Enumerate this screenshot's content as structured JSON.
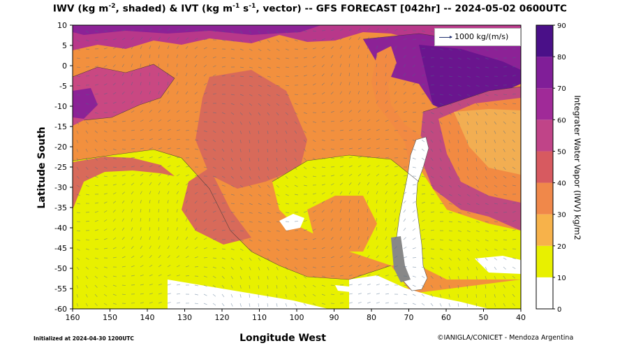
{
  "title": {
    "part1": "IWV (kg m",
    "sup1": "-2",
    "part2": ", shaded) & IVT (kg m",
    "sup2": "-1",
    "part3": " s",
    "sup3": "-1",
    "part4": ", vector) -- GFS FORECAST [042hr] -- 2024-05-02 0600UTC"
  },
  "axes": {
    "xlabel": "Longitude West",
    "ylabel": "Latitude South",
    "x_ticks": [
      "160",
      "150",
      "140",
      "130",
      "120",
      "110",
      "100",
      "90",
      "80",
      "70",
      "60",
      "50",
      "40"
    ],
    "y_ticks": [
      "10",
      "5",
      "0",
      "-5",
      "-10",
      "-15",
      "-20",
      "-25",
      "-30",
      "-35",
      "-40",
      "-45",
      "-50",
      "-55",
      "-60"
    ]
  },
  "legend": {
    "vector_reference": "1000 kg/(m/s)"
  },
  "colorbar": {
    "label": "Integrater Water Vapor (IWV) kg/m2",
    "ticks": [
      "90",
      "80",
      "70",
      "60",
      "50",
      "40",
      "30",
      "20",
      "10",
      "0"
    ],
    "colors": [
      "#ffffff",
      "#e8f000",
      "#f7b24a",
      "#f0884a",
      "#d75a60",
      "#c04488",
      "#a02a98",
      "#801e98",
      "#4a1088"
    ]
  },
  "footer": {
    "initialized": "Initialized at 2024-04-30 1200UTC",
    "credit": "©IANIGLA/CONICET - Mendoza Argentina"
  }
}
